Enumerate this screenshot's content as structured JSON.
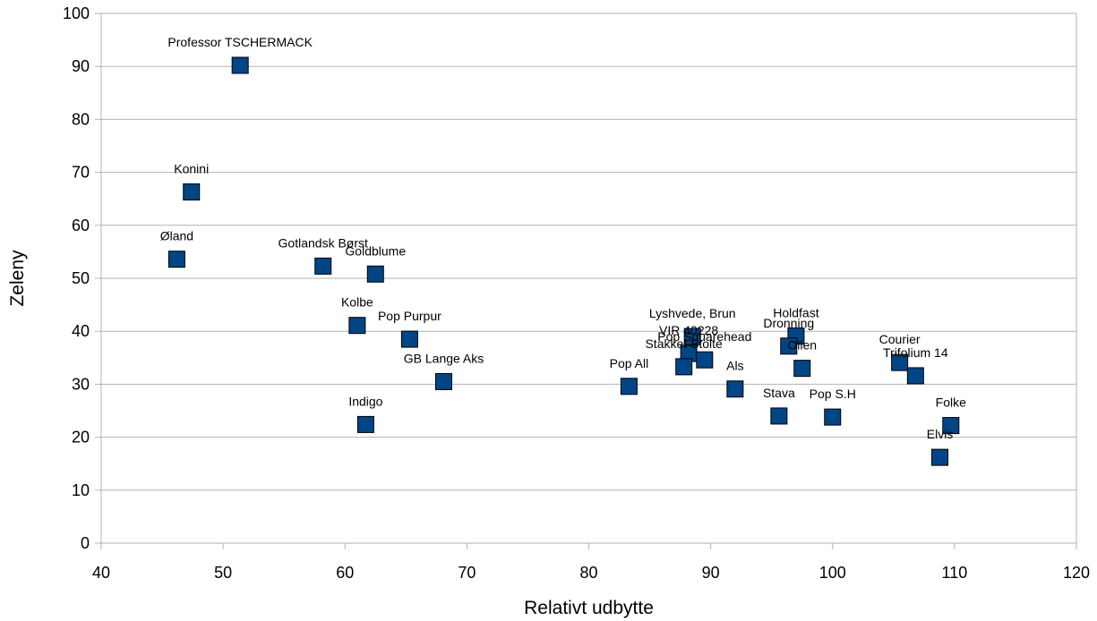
{
  "chart_data": {
    "type": "scatter",
    "title": "",
    "xlabel": "Relativt udbytte",
    "ylabel": "Zeleny",
    "xlim": [
      40,
      120
    ],
    "ylim": [
      0,
      100
    ],
    "x_ticks": [
      40,
      50,
      60,
      70,
      80,
      90,
      100,
      110,
      120
    ],
    "y_ticks": [
      0,
      10,
      20,
      30,
      40,
      50,
      60,
      70,
      80,
      90,
      100
    ],
    "grid": "horizontal",
    "legend": "none",
    "marker": "square",
    "marker_color": "#004586",
    "points": [
      {
        "label": "Professor TSCHERMACK",
        "x": 51.4,
        "y": 90.2
      },
      {
        "label": "Konini",
        "x": 47.4,
        "y": 66.3
      },
      {
        "label": "Øland",
        "x": 46.2,
        "y": 53.6
      },
      {
        "label": "Gotlandsk Børst",
        "x": 58.2,
        "y": 52.3
      },
      {
        "label": "Goldblume",
        "x": 62.5,
        "y": 50.8
      },
      {
        "label": "Kolbe",
        "x": 61.0,
        "y": 41.1
      },
      {
        "label": "Pop Purpur",
        "x": 65.3,
        "y": 38.5
      },
      {
        "label": "GB Lange Aks",
        "x": 68.1,
        "y": 30.5
      },
      {
        "label": "Indigo",
        "x": 61.7,
        "y": 22.4
      },
      {
        "label": "Pop All",
        "x": 83.3,
        "y": 29.6
      },
      {
        "label": "Lyshvede, Brun",
        "x": 88.5,
        "y": 39.0
      },
      {
        "label": "VIR 40228",
        "x": 88.2,
        "y": 35.8
      },
      {
        "label": "Pop Squarehead",
        "x": 89.5,
        "y": 34.6
      },
      {
        "label": "Stakket Stolte",
        "x": 87.8,
        "y": 33.3
      },
      {
        "label": "Als",
        "x": 92.0,
        "y": 29.1
      },
      {
        "label": "Stava",
        "x": 95.6,
        "y": 24.0
      },
      {
        "label": "Holdfast",
        "x": 97.0,
        "y": 39.1
      },
      {
        "label": "Dronning",
        "x": 96.4,
        "y": 37.2
      },
      {
        "label": "Ollen",
        "x": 97.5,
        "y": 33.0
      },
      {
        "label": "Pop S.H",
        "x": 100.0,
        "y": 23.8
      },
      {
        "label": "Courier",
        "x": 105.5,
        "y": 34.1
      },
      {
        "label": "Trifolium 14",
        "x": 106.8,
        "y": 31.6
      },
      {
        "label": "Folke",
        "x": 109.7,
        "y": 22.2
      },
      {
        "label": "Elvis",
        "x": 108.8,
        "y": 16.2
      }
    ]
  }
}
